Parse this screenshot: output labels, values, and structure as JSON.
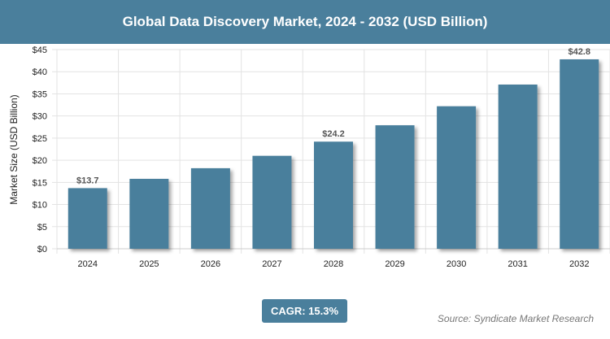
{
  "header": {
    "title": "Global Data Discovery Market, 2024 - 2032 (USD Billion)"
  },
  "footer": {
    "cagr": "CAGR: 15.3%",
    "source": "Source: Syndicate Market Research"
  },
  "chart_data": {
    "type": "bar",
    "title": "Global Data Discovery Market, 2024 - 2032 (USD Billion)",
    "xlabel": "",
    "ylabel": "Market Size (USD Billion)",
    "categories": [
      "2024",
      "2025",
      "2026",
      "2027",
      "2028",
      "2029",
      "2030",
      "2031",
      "2032"
    ],
    "values": [
      13.7,
      15.8,
      18.2,
      21.0,
      24.2,
      27.9,
      32.2,
      37.1,
      42.8
    ],
    "data_labels": {
      "0": "$13.7",
      "4": "$24.2",
      "8": "$42.8"
    },
    "ylim": [
      0,
      45
    ],
    "yticks": [
      0,
      5,
      10,
      15,
      20,
      25,
      30,
      35,
      40,
      45
    ],
    "ytick_prefix": "$",
    "grid": true,
    "bar_color": "#4a7f9c",
    "header_color": "#4a7f9c"
  }
}
